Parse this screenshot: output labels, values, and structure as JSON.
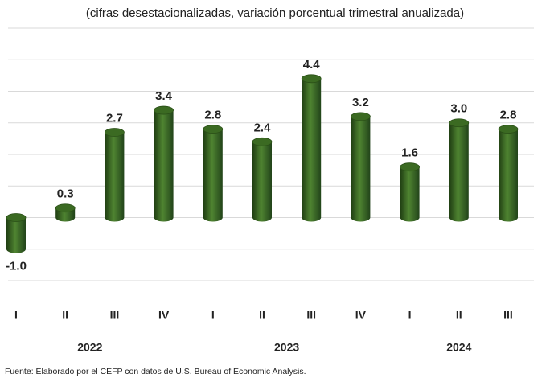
{
  "chart_data": {
    "type": "bar",
    "subtitle": "(cifras desestacionalizadas, variación porcentual trimestral anualizada)",
    "categories": [
      "I",
      "II",
      "III",
      "IV",
      "I",
      "II",
      "III",
      "IV",
      "I",
      "II",
      "III"
    ],
    "groups": [
      {
        "name": "2022",
        "size": 4
      },
      {
        "name": "2023",
        "size": 4
      },
      {
        "name": "2024",
        "size": 3
      }
    ],
    "values": [
      -1.0,
      0.3,
      2.7,
      3.4,
      2.8,
      2.4,
      4.4,
      3.2,
      1.6,
      3.0,
      2.8
    ],
    "value_labels": [
      "-1.0",
      "0.3",
      "2.7",
      "3.4",
      "2.8",
      "2.4",
      "4.4",
      "3.2",
      "1.6",
      "3.0",
      "2.8"
    ],
    "color": "#3b6a22",
    "ylim": [
      -2,
      6
    ],
    "yticks": [
      -2,
      -1,
      0,
      1,
      2,
      3,
      4,
      5,
      6
    ],
    "grid": true,
    "source": "Fuente: Elaborado por el CEFP con datos de U.S. Bureau of Economic Analysis."
  }
}
